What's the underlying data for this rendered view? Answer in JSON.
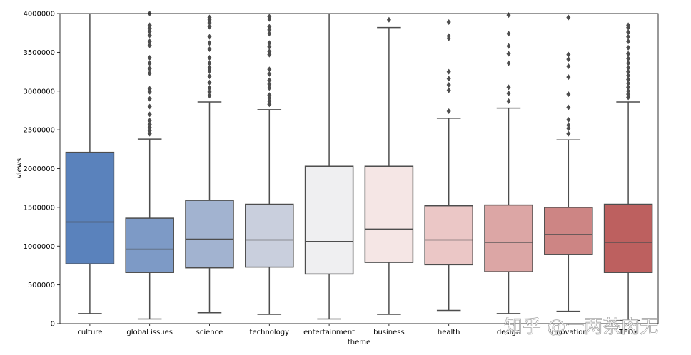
{
  "chart_data": {
    "type": "boxplot",
    "xlabel": "theme",
    "ylabel": "views",
    "ylim": [
      0,
      4000000
    ],
    "yticks": [
      0,
      500000,
      1000000,
      1500000,
      2000000,
      2500000,
      3000000,
      3500000,
      4000000
    ],
    "yticklabels": [
      "0",
      "500000",
      "1000000",
      "1500000",
      "2000000",
      "2500000",
      "3000000",
      "3500000",
      "4000000"
    ],
    "grid": false,
    "legend": "none",
    "line_color": "#4d4d4d",
    "series": [
      {
        "category": "culture",
        "color": "#5a82bc",
        "q1": 770000,
        "median": 1310000,
        "q3": 2210000,
        "whisker_low": 130000,
        "whisker_high": 4000000,
        "outliers": []
      },
      {
        "category": "global issues",
        "color": "#7d9ac6",
        "q1": 660000,
        "median": 960000,
        "q3": 1360000,
        "whisker_low": 60000,
        "whisker_high": 2380000,
        "outliers": [
          2450000,
          2490000,
          2530000,
          2570000,
          2620000,
          2700000,
          2800000,
          2900000,
          2990000,
          3030000,
          3230000,
          3290000,
          3360000,
          3430000,
          3590000,
          3640000,
          3720000,
          3770000,
          3810000,
          3850000,
          4000000
        ]
      },
      {
        "category": "science",
        "color": "#a2b3d0",
        "q1": 720000,
        "median": 1090000,
        "q3": 1590000,
        "whisker_low": 140000,
        "whisker_high": 2860000,
        "outliers": [
          2940000,
          2990000,
          3040000,
          3110000,
          3190000,
          3260000,
          3300000,
          3360000,
          3430000,
          3540000,
          3620000,
          3700000,
          3830000,
          3880000,
          3920000,
          3950000
        ]
      },
      {
        "category": "technology",
        "color": "#c9cfdd",
        "q1": 730000,
        "median": 1080000,
        "q3": 1540000,
        "whisker_low": 120000,
        "whisker_high": 2760000,
        "outliers": [
          2830000,
          2870000,
          2910000,
          2950000,
          3040000,
          3090000,
          3140000,
          3220000,
          3280000,
          3470000,
          3510000,
          3570000,
          3620000,
          3740000,
          3790000,
          3830000,
          3930000,
          3960000
        ]
      },
      {
        "category": "entertainment",
        "color": "#efeff1",
        "q1": 640000,
        "median": 1060000,
        "q3": 2030000,
        "whisker_low": 60000,
        "whisker_high": 4000000,
        "outliers": []
      },
      {
        "category": "business",
        "color": "#f5e6e5",
        "q1": 790000,
        "median": 1220000,
        "q3": 2030000,
        "whisker_low": 120000,
        "whisker_high": 3820000,
        "outliers": [
          3920000
        ]
      },
      {
        "category": "health",
        "color": "#ebc7c6",
        "q1": 760000,
        "median": 1080000,
        "q3": 1520000,
        "whisker_low": 170000,
        "whisker_high": 2650000,
        "outliers": [
          2740000,
          3010000,
          3080000,
          3160000,
          3250000,
          3680000,
          3710000,
          3890000
        ]
      },
      {
        "category": "design",
        "color": "#dca6a5",
        "q1": 670000,
        "median": 1050000,
        "q3": 1530000,
        "whisker_low": 130000,
        "whisker_high": 2780000,
        "outliers": [
          2870000,
          2970000,
          3050000,
          3360000,
          3480000,
          3580000,
          3740000,
          3980000
        ]
      },
      {
        "category": "innovation",
        "color": "#cd8584",
        "q1": 890000,
        "median": 1150000,
        "q3": 1500000,
        "whisker_low": 160000,
        "whisker_high": 2370000,
        "outliers": [
          2450000,
          2520000,
          2560000,
          2630000,
          2790000,
          2960000,
          3180000,
          3320000,
          3410000,
          3470000,
          3950000
        ]
      },
      {
        "category": "TEDx",
        "color": "#bd605f",
        "q1": 660000,
        "median": 1050000,
        "q3": 1540000,
        "whisker_low": 40000,
        "whisker_high": 2860000,
        "outliers": [
          2920000,
          2960000,
          3000000,
          3050000,
          3100000,
          3150000,
          3200000,
          3250000,
          3300000,
          3360000,
          3420000,
          3480000,
          3560000,
          3640000,
          3700000,
          3760000,
          3820000,
          3850000
        ]
      }
    ]
  },
  "watermark": {
    "text": "知乎 @一两茶肉无"
  }
}
